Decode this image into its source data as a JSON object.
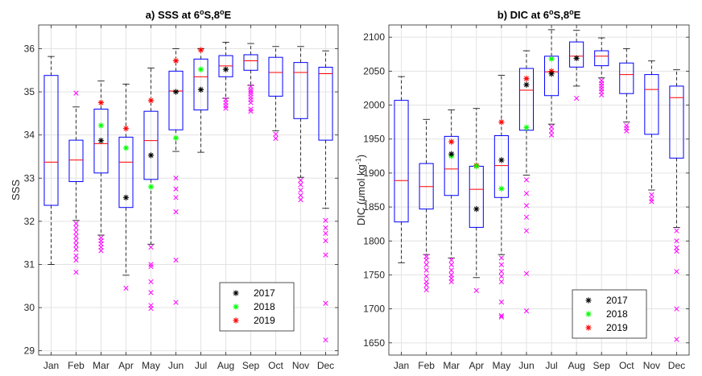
{
  "months": [
    "Jan",
    "Feb",
    "Mar",
    "Apr",
    "May",
    "Jun",
    "Jul",
    "Aug",
    "Sep",
    "Oct",
    "Nov",
    "Dec"
  ],
  "colors": {
    "box": "#0000ff",
    "median": "#ff0000",
    "whisker": "#000000",
    "outlier": "#ff00ff",
    "y2017": "#000000",
    "y2018": "#00ff00",
    "y2019": "#ff0000"
  },
  "chart_data": [
    {
      "type": "box",
      "title_main": "a) SSS at 6",
      "title_rest": "S,8",
      "title_end": "E",
      "title_sup": "o",
      "ylabel": "SSS",
      "xlabel": "",
      "ylim": [
        28.9,
        36.55
      ],
      "yticks": [
        "29",
        "30",
        "31",
        "32",
        "33",
        "34",
        "35",
        "36"
      ],
      "grid": true,
      "legend": {
        "placement": "bottom-right",
        "entries": [
          "2017",
          "2018",
          "2019"
        ]
      },
      "boxes": [
        {
          "q1": 32.37,
          "median": 33.37,
          "q3": 35.38,
          "wlo": 31.0,
          "whi": 35.82,
          "outliers": []
        },
        {
          "q1": 32.92,
          "median": 33.42,
          "q3": 33.88,
          "wlo": 32.02,
          "whi": 34.65,
          "outliers": [
            31.95,
            31.85,
            31.75,
            31.65,
            31.55,
            31.45,
            31.35,
            31.2,
            31.1,
            30.82,
            34.97
          ]
        },
        {
          "q1": 33.12,
          "median": 33.8,
          "q3": 34.6,
          "wlo": 31.68,
          "whi": 35.25,
          "outliers": [
            31.62,
            31.55,
            31.48,
            31.4,
            31.32
          ]
        },
        {
          "q1": 32.32,
          "median": 33.37,
          "q3": 33.95,
          "wlo": 30.75,
          "whi": 35.18,
          "outliers": [
            30.45
          ]
        },
        {
          "q1": 32.97,
          "median": 33.87,
          "q3": 34.55,
          "wlo": 31.47,
          "whi": 35.55,
          "outliers": [
            31.4,
            31.0,
            30.95,
            30.6,
            30.35,
            30.05,
            29.98
          ]
        },
        {
          "q1": 34.12,
          "median": 35.02,
          "q3": 35.48,
          "wlo": 33.62,
          "whi": 36.0,
          "outliers": [
            33.0,
            32.75,
            32.55,
            32.22,
            31.1,
            30.12
          ]
        },
        {
          "q1": 34.58,
          "median": 35.35,
          "q3": 35.76,
          "wlo": 33.6,
          "whi": 36.0,
          "outliers": []
        },
        {
          "q1": 35.35,
          "median": 35.6,
          "q3": 35.84,
          "wlo": 34.85,
          "whi": 36.15,
          "outliers": [
            34.82,
            34.75,
            34.68,
            34.62
          ]
        },
        {
          "q1": 35.5,
          "median": 35.72,
          "q3": 35.86,
          "wlo": 35.15,
          "whi": 36.12,
          "outliers": [
            35.12,
            35.05,
            35.0,
            34.95,
            34.88,
            34.82,
            34.75,
            34.6,
            34.55
          ]
        },
        {
          "q1": 34.9,
          "median": 35.45,
          "q3": 35.8,
          "wlo": 34.1,
          "whi": 36.05,
          "outliers": [
            34.02,
            33.92
          ]
        },
        {
          "q1": 34.38,
          "median": 35.45,
          "q3": 35.68,
          "wlo": 33.02,
          "whi": 36.05,
          "outliers": [
            32.95,
            32.85,
            32.72,
            32.6,
            32.5
          ]
        },
        {
          "q1": 33.88,
          "median": 35.42,
          "q3": 35.57,
          "wlo": 32.3,
          "whi": 35.95,
          "outliers": [
            32.02,
            31.85,
            31.72,
            31.55,
            31.22,
            30.1,
            29.25
          ]
        }
      ],
      "markers": {
        "2017": [
          null,
          null,
          33.87,
          32.55,
          33.53,
          35.0,
          35.05,
          35.52,
          null,
          null,
          null,
          null
        ],
        "2018": [
          null,
          null,
          34.22,
          33.7,
          32.8,
          33.93,
          35.52,
          null,
          null,
          null,
          null,
          null
        ],
        "2019": [
          null,
          null,
          34.75,
          34.15,
          34.8,
          35.72,
          35.97,
          null,
          null,
          null,
          null,
          null
        ]
      }
    },
    {
      "type": "box",
      "title_main": "b) DIC at 6",
      "title_rest": "S,8",
      "title_end": "E",
      "title_sup": "o",
      "ylabel_pre": "DIC (",
      "ylabel_mu": "μ",
      "ylabel_mid": "mol kg",
      "ylabel_sup": "-1",
      "ylabel_post": ")",
      "xlabel": "",
      "ylim": [
        1632,
        2118
      ],
      "yticks": [
        "1650",
        "1700",
        "1750",
        "1800",
        "1850",
        "1900",
        "1950",
        "2000",
        "2050",
        "2100"
      ],
      "grid": true,
      "legend": {
        "placement": "bottom-right",
        "entries": [
          "2017",
          "2018",
          "2019"
        ]
      },
      "boxes": [
        {
          "q1": 1828,
          "median": 1889,
          "q3": 2007,
          "wlo": 1768,
          "whi": 2042,
          "outliers": []
        },
        {
          "q1": 1847,
          "median": 1880,
          "q3": 1914,
          "wlo": 1780,
          "whi": 1979,
          "outliers": [
            1777,
            1772,
            1765,
            1757,
            1748,
            1740,
            1735,
            1728
          ]
        },
        {
          "q1": 1867,
          "median": 1906,
          "q3": 1954,
          "wlo": 1775,
          "whi": 1993,
          "outliers": [
            1772,
            1765,
            1757,
            1750,
            1745,
            1740
          ]
        },
        {
          "q1": 1820,
          "median": 1876,
          "q3": 1910,
          "wlo": 1746,
          "whi": 1995,
          "outliers": [
            1727
          ]
        },
        {
          "q1": 1864,
          "median": 1911,
          "q3": 1955,
          "wlo": 1780,
          "whi": 2044,
          "outliers": [
            1775,
            1765,
            1755,
            1748,
            1740,
            1710,
            1690,
            1688
          ]
        },
        {
          "q1": 1963,
          "median": 2022,
          "q3": 2054,
          "wlo": 1897,
          "whi": 2080,
          "outliers": [
            1890,
            1870,
            1852,
            1835,
            1815,
            1752,
            1697
          ]
        },
        {
          "q1": 2014,
          "median": 2049,
          "q3": 2072,
          "wlo": 1972,
          "whi": 2111,
          "outliers": [
            1968,
            1962,
            1956
          ]
        },
        {
          "q1": 2056,
          "median": 2072,
          "q3": 2093,
          "wlo": 2028,
          "whi": 2110,
          "outliers": [
            2010
          ]
        },
        {
          "q1": 2058,
          "median": 2072,
          "q3": 2080,
          "wlo": 2040,
          "whi": 2099,
          "outliers": [
            2036,
            2032,
            2028,
            2024,
            2020,
            2015
          ]
        },
        {
          "q1": 2017,
          "median": 2045,
          "q3": 2062,
          "wlo": 1975,
          "whi": 2083,
          "outliers": [
            1970,
            1966,
            1962
          ]
        },
        {
          "q1": 1957,
          "median": 2023,
          "q3": 2045,
          "wlo": 1875,
          "whi": 2065,
          "outliers": [
            1868,
            1862,
            1858
          ]
        },
        {
          "q1": 1922,
          "median": 2011,
          "q3": 2028,
          "wlo": 1820,
          "whi": 2052,
          "outliers": [
            1815,
            1800,
            1790,
            1785,
            1755,
            1700,
            1655
          ]
        }
      ],
      "markers": {
        "2017": [
          null,
          null,
          1928,
          1847,
          1919,
          2030,
          2046,
          2069,
          null,
          null,
          null,
          null
        ],
        "2018": [
          null,
          null,
          1925,
          1910,
          1877,
          1967,
          2068,
          null,
          null,
          null,
          null,
          null
        ],
        "2019": [
          null,
          null,
          1946,
          1911,
          1975,
          2039,
          2050,
          null,
          null,
          null,
          null,
          null
        ]
      }
    }
  ]
}
